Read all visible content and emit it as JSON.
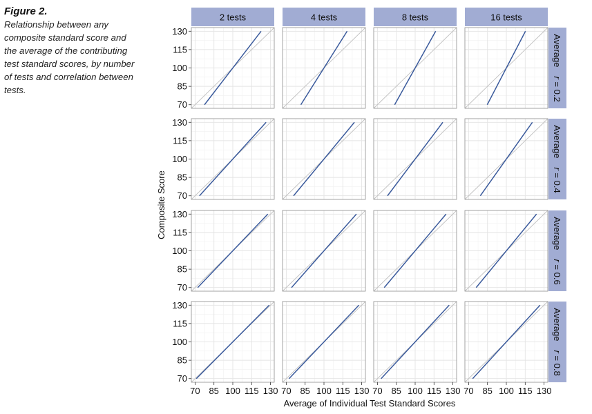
{
  "figure": {
    "label": "Figure 2.",
    "caption": "Relationship between any composite standard score and the average of the contributing test standard scores, by number of tests and correlation between tests."
  },
  "chart_data": {
    "type": "line",
    "facet_columns": [
      "2 tests",
      "4 tests",
      "8 tests",
      "16 tests"
    ],
    "facet_rows": [
      {
        "prefix": "Average",
        "r_symbol": "r",
        "suffix": "= 0.2",
        "r": 0.2
      },
      {
        "prefix": "Average",
        "r_symbol": "r",
        "suffix": "= 0.4",
        "r": 0.4
      },
      {
        "prefix": "Average",
        "r_symbol": "r",
        "suffix": "= 0.6",
        "r": 0.6
      },
      {
        "prefix": "Average",
        "r_symbol": "r",
        "suffix": "= 0.8",
        "r": 0.8
      }
    ],
    "xlabel": "Average of Individual Test Standard Scores",
    "ylabel": "Composite Score",
    "xlim": [
      70,
      130
    ],
    "ylim": [
      70,
      130
    ],
    "x_ticks": [
      70,
      85,
      100,
      115,
      130
    ],
    "y_ticks": [
      70,
      85,
      100,
      115,
      130
    ],
    "grid": true,
    "reference_line": "identity",
    "colors": {
      "line": "#3a5a9c",
      "reference": "#c0c0c0",
      "strip_fill": "#a1acd3",
      "grid": "#e4e4e4",
      "panel_border": "#8c8c8c"
    },
    "series": [
      {
        "row": 0,
        "col": 0,
        "x": [
          77.5,
          122.5
        ],
        "y": [
          70,
          130
        ]
      },
      {
        "row": 0,
        "col": 1,
        "x": [
          81.6,
          118.4
        ],
        "y": [
          70,
          130
        ]
      },
      {
        "row": 0,
        "col": 2,
        "x": [
          83.7,
          116.3
        ],
        "y": [
          70,
          130
        ]
      },
      {
        "row": 0,
        "col": 3,
        "x": [
          84.8,
          115.2
        ],
        "y": [
          70,
          130
        ]
      },
      {
        "row": 1,
        "col": 0,
        "x": [
          73.5,
          126.5
        ],
        "y": [
          70,
          130
        ]
      },
      {
        "row": 1,
        "col": 1,
        "x": [
          75.8,
          124.2
        ],
        "y": [
          70,
          130
        ]
      },
      {
        "row": 1,
        "col": 2,
        "x": [
          78.0,
          122.0
        ],
        "y": [
          70,
          130
        ]
      },
      {
        "row": 1,
        "col": 3,
        "x": [
          79.3,
          120.7
        ],
        "y": [
          70,
          130
        ]
      },
      {
        "row": 2,
        "col": 0,
        "x": [
          72.1,
          127.9
        ],
        "y": [
          70,
          130
        ]
      },
      {
        "row": 2,
        "col": 1,
        "x": [
          74.2,
          125.8
        ],
        "y": [
          70,
          130
        ]
      },
      {
        "row": 2,
        "col": 2,
        "x": [
          75.4,
          124.6
        ],
        "y": [
          70,
          130
        ]
      },
      {
        "row": 2,
        "col": 3,
        "x": [
          76.0,
          124.0
        ],
        "y": [
          70,
          130
        ]
      },
      {
        "row": 3,
        "col": 0,
        "x": [
          71.0,
          129.0
        ],
        "y": [
          70,
          130
        ]
      },
      {
        "row": 3,
        "col": 1,
        "x": [
          72.2,
          127.8
        ],
        "y": [
          70,
          130
        ]
      },
      {
        "row": 3,
        "col": 2,
        "x": [
          72.9,
          127.1
        ],
        "y": [
          70,
          130
        ]
      },
      {
        "row": 3,
        "col": 3,
        "x": [
          73.2,
          126.8
        ],
        "y": [
          70,
          130
        ]
      }
    ]
  }
}
